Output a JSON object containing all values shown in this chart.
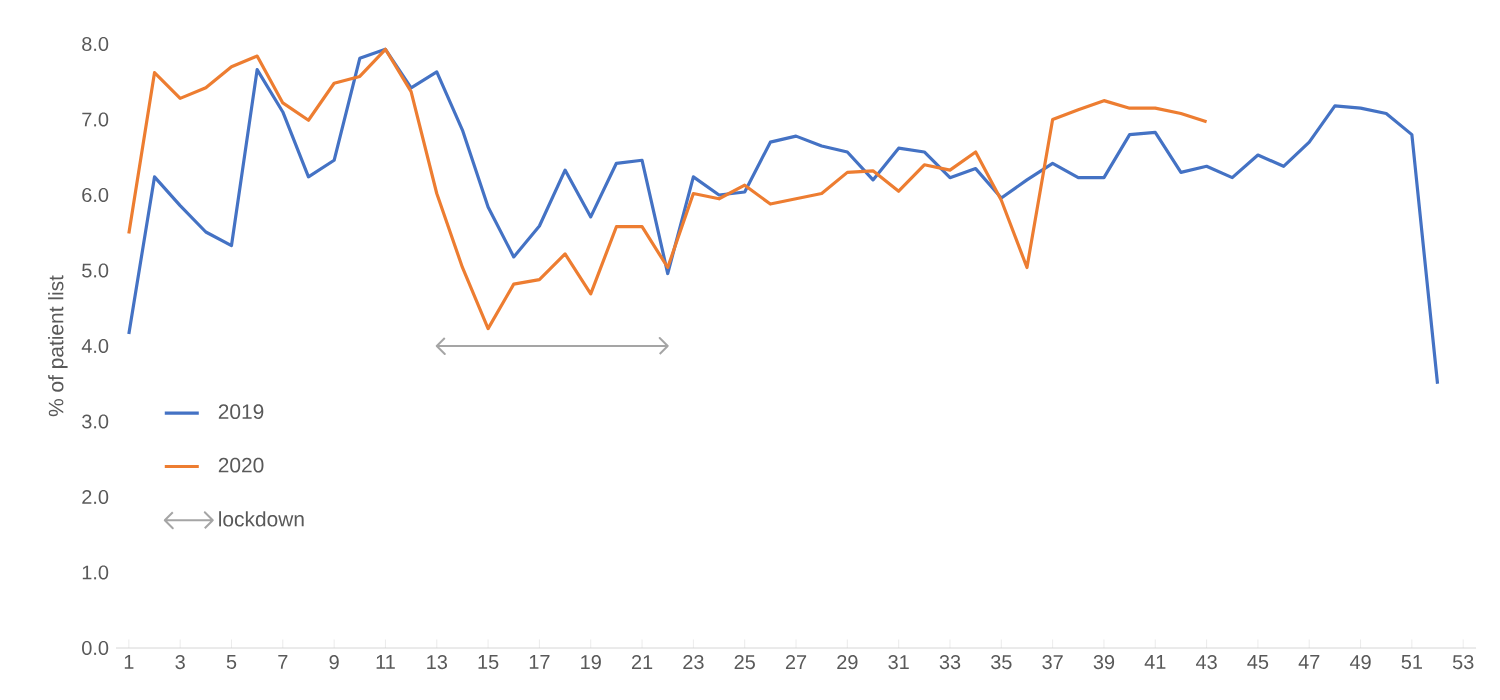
{
  "chart_data": {
    "type": "line",
    "ylabel": "% of patient list",
    "x": [
      1,
      2,
      3,
      4,
      5,
      6,
      7,
      8,
      9,
      10,
      11,
      12,
      13,
      14,
      15,
      16,
      17,
      18,
      19,
      20,
      21,
      22,
      23,
      24,
      25,
      26,
      27,
      28,
      29,
      30,
      31,
      32,
      33,
      34,
      35,
      36,
      37,
      38,
      39,
      40,
      41,
      42,
      43,
      44,
      45,
      46,
      47,
      48,
      49,
      50,
      51,
      52
    ],
    "xlim": [
      0.5,
      53.5
    ],
    "xticks": [
      1,
      3,
      5,
      7,
      9,
      11,
      13,
      15,
      17,
      19,
      21,
      23,
      25,
      27,
      29,
      31,
      33,
      35,
      37,
      39,
      41,
      43,
      45,
      47,
      49,
      51,
      53
    ],
    "ylim": [
      0,
      8
    ],
    "yticks": [
      {
        "value": 0,
        "label": "0.0"
      },
      {
        "value": 1,
        "label": "1.0"
      },
      {
        "value": 2,
        "label": "2.0"
      },
      {
        "value": 3,
        "label": "3.0"
      },
      {
        "value": 4,
        "label": "4.0"
      },
      {
        "value": 5,
        "label": "5.0"
      },
      {
        "value": 6,
        "label": "6.0"
      },
      {
        "value": 7,
        "label": "7.0"
      },
      {
        "value": 8,
        "label": "8.0"
      }
    ],
    "legend": "left",
    "marker": "none",
    "line_style": "solid",
    "series": [
      {
        "name": "2019",
        "color": "#4472c4",
        "values": [
          4.16,
          6.24,
          5.86,
          5.51,
          5.33,
          7.66,
          7.1,
          6.24,
          6.46,
          7.81,
          7.93,
          7.42,
          7.63,
          6.86,
          5.84,
          5.18,
          5.59,
          6.33,
          5.71,
          6.42,
          6.46,
          4.96,
          6.24,
          6.0,
          6.04,
          6.7,
          6.78,
          6.65,
          6.57,
          6.2,
          6.62,
          6.57,
          6.23,
          6.35,
          5.96,
          6.2,
          6.42,
          6.23,
          6.23,
          6.8,
          6.83,
          6.3,
          6.38,
          6.23,
          6.53,
          6.38,
          6.7,
          7.18,
          7.15,
          7.08,
          6.8,
          3.5
        ]
      },
      {
        "name": "2020",
        "color": "#ed7d31",
        "values": [
          5.49,
          7.62,
          7.28,
          7.42,
          7.7,
          7.84,
          7.22,
          6.99,
          7.48,
          7.57,
          7.93,
          7.37,
          6.02,
          5.04,
          4.23,
          4.82,
          4.88,
          5.22,
          4.69,
          5.58,
          5.58,
          5.04,
          6.02,
          5.95,
          6.13,
          5.88,
          5.95,
          6.02,
          6.3,
          6.32,
          6.05,
          6.4,
          6.33,
          6.57,
          5.93,
          5.04,
          7.0,
          7.13,
          7.25,
          7.15,
          7.15,
          7.08,
          6.97,
          null,
          null,
          null,
          null,
          null,
          null,
          null,
          null,
          null
        ]
      },
      {
        "name": "lockdown",
        "type": "line",
        "color": "#a5a5a5",
        "x": [
          13,
          22
        ],
        "values": [
          4.0,
          4.0
        ]
      }
    ]
  }
}
